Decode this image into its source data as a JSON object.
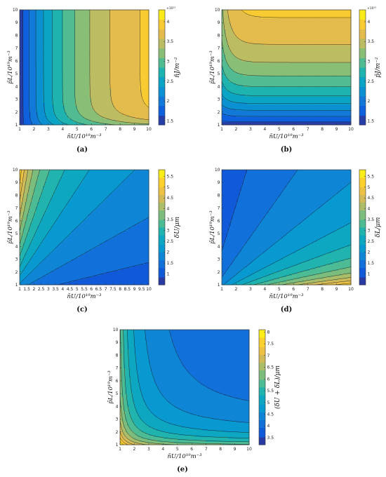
{
  "chart_data": [
    {
      "type": "heatmap",
      "panel_label": "(a)",
      "xlabel": "n̄U/10¹⁹m⁻³",
      "ylabel": "p̄L/10¹⁹m⁻³",
      "colorbar_label": "n̄J/m⁻²",
      "colorbar_exponent": "×10¹³",
      "xlim": [
        1,
        10
      ],
      "ylim": [
        1,
        10
      ],
      "x_ticks": [
        "1",
        "2",
        "3",
        "4",
        "5",
        "6",
        "7",
        "8",
        "9",
        "10"
      ],
      "y_ticks": [
        "1",
        "2",
        "3",
        "4",
        "5",
        "6",
        "7",
        "8",
        "9",
        "10"
      ],
      "colorbar_range": [
        1.4,
        4.3
      ],
      "colorbar_ticks": [
        "1.5",
        "2",
        "2.5",
        "3",
        "3.5",
        "4"
      ],
      "colorbar_tick_values": [
        1.5,
        2,
        2.5,
        3,
        3.5,
        4
      ],
      "levels": 12
    },
    {
      "type": "heatmap",
      "panel_label": "(b)",
      "xlabel": "n̄U/10¹⁹m⁻³",
      "ylabel": "p̄L/10¹⁹m⁻³",
      "colorbar_label": "p̄J/m⁻²",
      "colorbar_exponent": "×10¹³",
      "xlim": [
        1,
        10
      ],
      "ylim": [
        1,
        10
      ],
      "x_ticks": [
        "1",
        "2",
        "3",
        "4",
        "5",
        "6",
        "7",
        "8",
        "9",
        "10"
      ],
      "y_ticks": [
        "1",
        "2",
        "3",
        "4",
        "5",
        "6",
        "7",
        "8",
        "9",
        "10"
      ],
      "colorbar_range": [
        1.4,
        4.3
      ],
      "colorbar_ticks": [
        "1.5",
        "2",
        "2.5",
        "3",
        "3.5",
        "4"
      ],
      "colorbar_tick_values": [
        1.5,
        2,
        2.5,
        3,
        3.5,
        4
      ],
      "levels": 12
    },
    {
      "type": "heatmap",
      "panel_label": "(c)",
      "xlabel": "n̄U/10¹⁹m⁻³",
      "ylabel": "p̄L/10¹⁹m⁻³",
      "colorbar_label": "δU/μm",
      "colorbar_exponent": "",
      "xlim": [
        1,
        10
      ],
      "ylim": [
        1,
        10
      ],
      "x_ticks": [
        "1",
        "1.5",
        "2",
        "2.5",
        "3",
        "3.5",
        "4",
        "4.5",
        "5",
        "5.5",
        "6",
        "6.5",
        "7",
        "7.5",
        "8",
        "8.5",
        "9",
        "9.5",
        "10"
      ],
      "y_ticks": [
        "1",
        "2",
        "3",
        "4",
        "5",
        "6",
        "7",
        "8",
        "9",
        "10"
      ],
      "colorbar_range": [
        0.5,
        5.8
      ],
      "colorbar_ticks": [
        "1",
        "1.5",
        "2",
        "2.5",
        "3",
        "3.5",
        "4",
        "4.5",
        "5",
        "5.5"
      ],
      "colorbar_tick_values": [
        1,
        1.5,
        2,
        2.5,
        3,
        3.5,
        4,
        4.5,
        5,
        5.5
      ],
      "levels": 14
    },
    {
      "type": "heatmap",
      "panel_label": "(d)",
      "xlabel": "n̄U/10¹⁹m⁻³",
      "ylabel": "p̄L/10¹⁹m⁻³",
      "colorbar_label": "δL/μm",
      "colorbar_exponent": "",
      "xlim": [
        1,
        10
      ],
      "ylim": [
        1,
        10
      ],
      "x_ticks": [
        "1",
        "2",
        "3",
        "4",
        "5",
        "6",
        "7",
        "8",
        "9",
        "10"
      ],
      "y_ticks": [
        "1",
        "2",
        "3",
        "4",
        "5",
        "6",
        "7",
        "8",
        "9",
        "10"
      ],
      "colorbar_range": [
        0.5,
        5.8
      ],
      "colorbar_ticks": [
        "1",
        "1.5",
        "2",
        "2.5",
        "3",
        "3.5",
        "4",
        "4.5",
        "5",
        "5.5"
      ],
      "colorbar_tick_values": [
        1,
        1.5,
        2,
        2.5,
        3,
        3.5,
        4,
        4.5,
        5,
        5.5
      ],
      "levels": 14
    },
    {
      "type": "heatmap",
      "panel_label": "(e)",
      "xlabel": "n̄U/10¹⁹m⁻³",
      "ylabel": "p̄L/10¹⁹m⁻³",
      "colorbar_label": "(δU + δL)/μm",
      "colorbar_exponent": "",
      "xlim": [
        1,
        10
      ],
      "ylim": [
        1,
        10
      ],
      "x_ticks": [
        "1",
        "2",
        "3",
        "4",
        "5",
        "6",
        "7",
        "8",
        "9",
        "10"
      ],
      "y_ticks": [
        "1",
        "2",
        "3",
        "4",
        "5",
        "6",
        "7",
        "8",
        "9",
        "10"
      ],
      "colorbar_range": [
        3.2,
        8.1
      ],
      "colorbar_ticks": [
        "3.5",
        "4",
        "4.5",
        "5",
        "5.5",
        "6",
        "6.5",
        "7",
        "7.5",
        "8"
      ],
      "colorbar_tick_values": [
        3.5,
        4,
        4.5,
        5,
        5.5,
        6,
        6.5,
        7,
        7.5,
        8
      ],
      "levels": 14
    }
  ]
}
